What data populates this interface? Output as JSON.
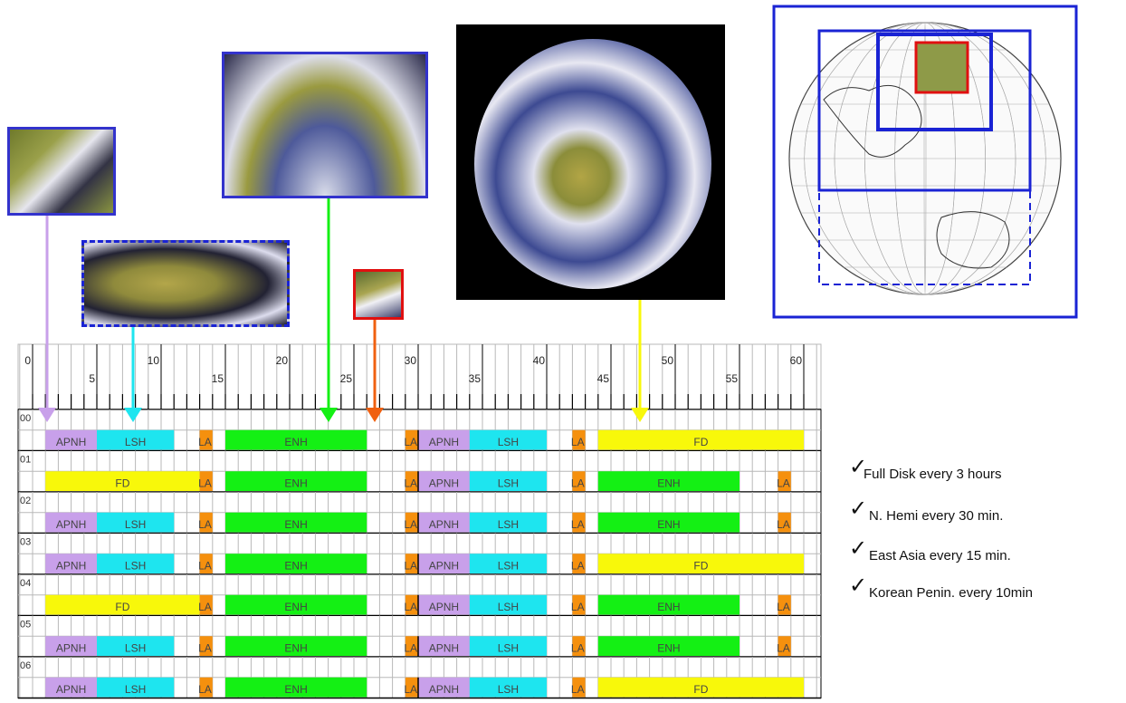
{
  "colors": {
    "APNH": "#c8a0ea",
    "LSH": "#1ee5ef",
    "LA": "#f5900e",
    "ENH": "#14f014",
    "FD": "#f8f80a",
    "box_blue": "#1a23d4",
    "box_red": "#e01010",
    "grid": "#b8b8b8"
  },
  "timeline": {
    "tick_labels": [
      "0",
      "5",
      "10",
      "15",
      "20",
      "25",
      "30",
      "35",
      "40",
      "45",
      "50",
      "55",
      "60"
    ],
    "rows": [
      {
        "hour": "00",
        "blocks": [
          {
            "type": "APNH",
            "label": "APNH",
            "start": 1,
            "end": 5
          },
          {
            "type": "LSH",
            "label": "LSH",
            "start": 5,
            "end": 11
          },
          {
            "type": "LA",
            "label": "LA",
            "start": 13,
            "end": 14
          },
          {
            "type": "ENH",
            "label": "ENH",
            "start": 15,
            "end": 26
          },
          {
            "type": "LA",
            "label": "LA",
            "start": 29,
            "end": 30
          },
          {
            "type": "APNH",
            "label": "APNH",
            "start": 30,
            "end": 34
          },
          {
            "type": "LSH",
            "label": "LSH",
            "start": 34,
            "end": 40
          },
          {
            "type": "LA",
            "label": "LA",
            "start": 42,
            "end": 43
          },
          {
            "type": "FD",
            "label": "FD",
            "start": 44,
            "end": 60
          }
        ]
      },
      {
        "hour": "01",
        "blocks": [
          {
            "type": "FD",
            "label": "FD",
            "start": 1,
            "end": 13
          },
          {
            "type": "LA",
            "label": "LA",
            "start": 13,
            "end": 14
          },
          {
            "type": "ENH",
            "label": "ENH",
            "start": 15,
            "end": 26
          },
          {
            "type": "LA",
            "label": "LA",
            "start": 29,
            "end": 30
          },
          {
            "type": "APNH",
            "label": "APNH",
            "start": 30,
            "end": 34
          },
          {
            "type": "LSH",
            "label": "LSH",
            "start": 34,
            "end": 40
          },
          {
            "type": "LA",
            "label": "LA",
            "start": 42,
            "end": 43
          },
          {
            "type": "ENH",
            "label": "ENH",
            "start": 44,
            "end": 55
          },
          {
            "type": "LA",
            "label": "LA",
            "start": 58,
            "end": 59
          }
        ]
      },
      {
        "hour": "02",
        "blocks": [
          {
            "type": "APNH",
            "label": "APNH",
            "start": 1,
            "end": 5
          },
          {
            "type": "LSH",
            "label": "LSH",
            "start": 5,
            "end": 11
          },
          {
            "type": "LA",
            "label": "LA",
            "start": 13,
            "end": 14
          },
          {
            "type": "ENH",
            "label": "ENH",
            "start": 15,
            "end": 26
          },
          {
            "type": "LA",
            "label": "LA",
            "start": 29,
            "end": 30
          },
          {
            "type": "APNH",
            "label": "APNH",
            "start": 30,
            "end": 34
          },
          {
            "type": "LSH",
            "label": "LSH",
            "start": 34,
            "end": 40
          },
          {
            "type": "LA",
            "label": "LA",
            "start": 42,
            "end": 43
          },
          {
            "type": "ENH",
            "label": "ENH",
            "start": 44,
            "end": 55
          },
          {
            "type": "LA",
            "label": "LA",
            "start": 58,
            "end": 59
          }
        ]
      },
      {
        "hour": "03",
        "blocks": [
          {
            "type": "APNH",
            "label": "APNH",
            "start": 1,
            "end": 5
          },
          {
            "type": "LSH",
            "label": "LSH",
            "start": 5,
            "end": 11
          },
          {
            "type": "LA",
            "label": "LA",
            "start": 13,
            "end": 14
          },
          {
            "type": "ENH",
            "label": "ENH",
            "start": 15,
            "end": 26
          },
          {
            "type": "LA",
            "label": "LA",
            "start": 29,
            "end": 30
          },
          {
            "type": "APNH",
            "label": "APNH",
            "start": 30,
            "end": 34
          },
          {
            "type": "LSH",
            "label": "LSH",
            "start": 34,
            "end": 40
          },
          {
            "type": "LA",
            "label": "LA",
            "start": 42,
            "end": 43
          },
          {
            "type": "FD",
            "label": "FD",
            "start": 44,
            "end": 60
          }
        ]
      },
      {
        "hour": "04",
        "blocks": [
          {
            "type": "FD",
            "label": "FD",
            "start": 1,
            "end": 13
          },
          {
            "type": "LA",
            "label": "LA",
            "start": 13,
            "end": 14
          },
          {
            "type": "ENH",
            "label": "ENH",
            "start": 15,
            "end": 26
          },
          {
            "type": "LA",
            "label": "LA",
            "start": 29,
            "end": 30
          },
          {
            "type": "APNH",
            "label": "APNH",
            "start": 30,
            "end": 34
          },
          {
            "type": "LSH",
            "label": "LSH",
            "start": 34,
            "end": 40
          },
          {
            "type": "LA",
            "label": "LA",
            "start": 42,
            "end": 43
          },
          {
            "type": "ENH",
            "label": "ENH",
            "start": 44,
            "end": 55
          },
          {
            "type": "LA",
            "label": "LA",
            "start": 58,
            "end": 59
          }
        ]
      },
      {
        "hour": "05",
        "blocks": [
          {
            "type": "APNH",
            "label": "APNH",
            "start": 1,
            "end": 5
          },
          {
            "type": "LSH",
            "label": "LSH",
            "start": 5,
            "end": 11
          },
          {
            "type": "LA",
            "label": "LA",
            "start": 13,
            "end": 14
          },
          {
            "type": "ENH",
            "label": "ENH",
            "start": 15,
            "end": 26
          },
          {
            "type": "LA",
            "label": "LA",
            "start": 29,
            "end": 30
          },
          {
            "type": "APNH",
            "label": "APNH",
            "start": 30,
            "end": 34
          },
          {
            "type": "LSH",
            "label": "LSH",
            "start": 34,
            "end": 40
          },
          {
            "type": "LA",
            "label": "LA",
            "start": 42,
            "end": 43
          },
          {
            "type": "ENH",
            "label": "ENH",
            "start": 44,
            "end": 55
          },
          {
            "type": "LA",
            "label": "LA",
            "start": 58,
            "end": 59
          }
        ]
      },
      {
        "hour": "06",
        "blocks": [
          {
            "type": "APNH",
            "label": "APNH",
            "start": 1,
            "end": 5
          },
          {
            "type": "LSH",
            "label": "LSH",
            "start": 5,
            "end": 11
          },
          {
            "type": "LA",
            "label": "LA",
            "start": 13,
            "end": 14
          },
          {
            "type": "ENH",
            "label": "ENH",
            "start": 15,
            "end": 26
          },
          {
            "type": "LA",
            "label": "LA",
            "start": 29,
            "end": 30
          },
          {
            "type": "APNH",
            "label": "APNH",
            "start": 30,
            "end": 34
          },
          {
            "type": "LSH",
            "label": "LSH",
            "start": 34,
            "end": 40
          },
          {
            "type": "LA",
            "label": "LA",
            "start": 42,
            "end": 43
          },
          {
            "type": "FD",
            "label": "FD",
            "start": 44,
            "end": 60
          }
        ]
      }
    ]
  },
  "legend": {
    "check_glyph": "✓",
    "items": [
      "Full Disk  every 3 hours",
      "N. Hemi   every 30 min.",
      "East Asia every 15 min.",
      "Korean Penin. every 10min"
    ]
  }
}
